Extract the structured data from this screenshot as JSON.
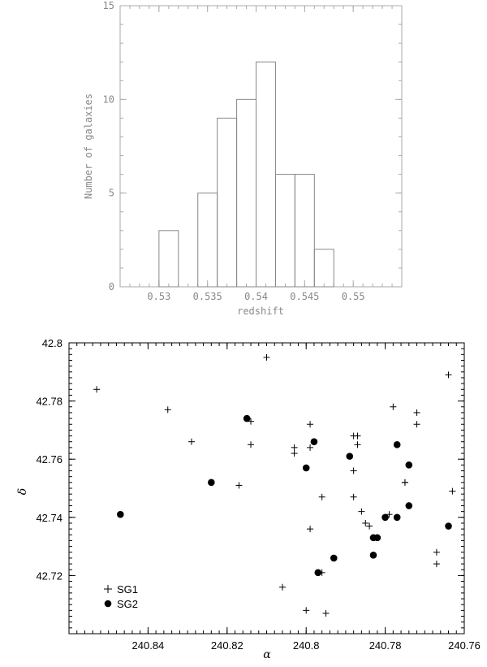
{
  "chart_data": [
    {
      "type": "bar",
      "subtype": "histogram",
      "title": "",
      "xlabel": "redshift",
      "ylabel": "Number of galaxies",
      "xlim": [
        0.526,
        0.555
      ],
      "ylim": [
        0,
        15
      ],
      "x_ticks": [
        0.53,
        0.535,
        0.54,
        0.545,
        0.55
      ],
      "x_tick_labels": [
        "0.53",
        "0.535",
        "0.54",
        "0.545",
        "0.55"
      ],
      "y_ticks": [
        0,
        5,
        10,
        15
      ],
      "y_tick_labels": [
        "0",
        "5",
        "10",
        "15"
      ],
      "bin_edges": [
        0.526,
        0.528,
        0.53,
        0.532,
        0.534,
        0.536,
        0.538,
        0.54,
        0.542,
        0.544,
        0.546,
        0.548,
        0.55,
        0.552,
        0.555
      ],
      "values": [
        0,
        0,
        3,
        0,
        5,
        9,
        10,
        12,
        6,
        6,
        2,
        0,
        0,
        0
      ],
      "color": "#888888",
      "grid": false
    },
    {
      "type": "scatter",
      "title": "",
      "xlabel": "α",
      "ylabel": "δ",
      "xlim": [
        240.86,
        240.76
      ],
      "ylim": [
        42.7,
        42.8
      ],
      "x_inverted": true,
      "x_ticks": [
        240.84,
        240.82,
        240.8,
        240.78,
        240.76
      ],
      "x_tick_labels": [
        "240.84",
        "240.82",
        "240.8",
        "240.78",
        "240.76"
      ],
      "y_ticks": [
        42.72,
        42.74,
        42.76,
        42.78,
        42.8
      ],
      "y_tick_labels": [
        "42.72",
        "42.74",
        "42.76",
        "42.78",
        "42.8"
      ],
      "legend_position": "bottom-left",
      "grid": false,
      "series": [
        {
          "name": "SG1",
          "marker": "plus",
          "x": [
            240.853,
            240.835,
            240.829,
            240.814,
            240.814,
            240.817,
            240.81,
            240.799,
            240.799,
            240.803,
            240.799,
            240.803,
            240.796,
            240.796,
            240.788,
            240.787,
            240.787,
            240.788,
            240.786,
            240.788,
            240.785,
            240.784,
            240.778,
            240.775,
            240.772,
            240.764,
            240.763,
            240.767,
            240.767,
            240.779,
            240.775,
            240.795,
            240.806,
            240.8,
            240.772
          ],
          "y": [
            42.784,
            42.777,
            42.766,
            42.773,
            42.765,
            42.751,
            42.795,
            42.772,
            42.764,
            42.764,
            42.736,
            42.762,
            42.747,
            42.721,
            42.768,
            42.768,
            42.765,
            42.756,
            42.742,
            42.747,
            42.738,
            42.737,
            42.778,
            42.752,
            42.772,
            42.789,
            42.749,
            42.728,
            42.724,
            42.741,
            42.752,
            42.707,
            42.716,
            42.708,
            42.776
          ]
        },
        {
          "name": "SG2",
          "marker": "filled-circle",
          "x": [
            240.847,
            240.824,
            240.815,
            240.8,
            240.798,
            240.797,
            240.789,
            240.777,
            240.783,
            240.783,
            240.774,
            240.777,
            240.774,
            240.782,
            240.793,
            240.764,
            240.78
          ],
          "y": [
            42.741,
            42.752,
            42.774,
            42.757,
            42.766,
            42.721,
            42.761,
            42.765,
            42.733,
            42.727,
            42.758,
            42.74,
            42.744,
            42.733,
            42.726,
            42.737,
            42.74
          ]
        }
      ]
    }
  ]
}
